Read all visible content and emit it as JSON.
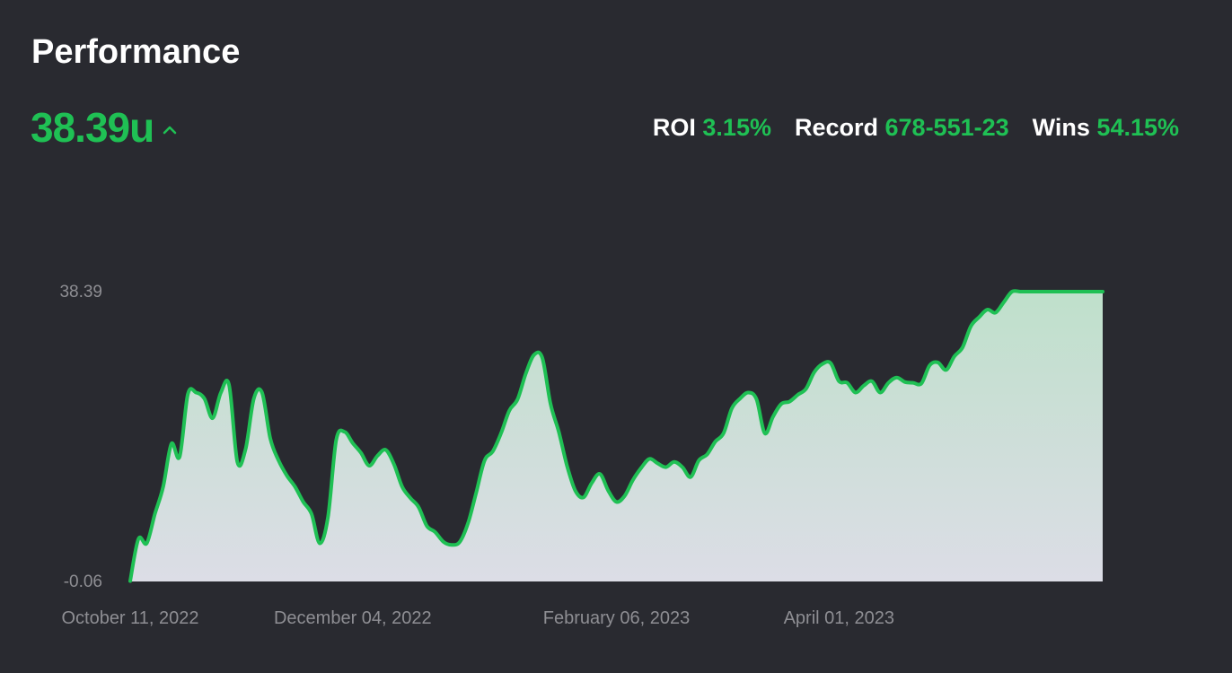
{
  "header": {
    "title": "Performance",
    "total_units": "38.39u",
    "trend_icon": "chevron-up-icon"
  },
  "stats": [
    {
      "label": "ROI",
      "value": "3.15%"
    },
    {
      "label": "Record",
      "value": "678-551-23"
    },
    {
      "label": "Wins",
      "value": "54.15%"
    }
  ],
  "colors": {
    "background": "#292a30",
    "accent_green": "#1fc054",
    "axis_text": "#8e8e93"
  },
  "chart_data": {
    "type": "area",
    "title": "",
    "xlabel": "",
    "ylabel": "",
    "ylim": [
      -0.06,
      38.39
    ],
    "y_tick_labels": [
      "38.39",
      "-0.06"
    ],
    "x_tick_labels": [
      "October 11, 2022",
      "December 04, 2022",
      "February 06, 2023",
      "April 01, 2023"
    ],
    "x_range": [
      "2022-10-11",
      "2023-06-04"
    ],
    "x_ticks": [
      "2022-10-11",
      "2022-12-04",
      "2023-02-06",
      "2023-04-01"
    ],
    "grid": false,
    "series": [
      {
        "x": [
          "2022-10-11",
          "2022-10-13",
          "2022-10-15",
          "2022-10-17",
          "2022-10-19",
          "2022-10-21",
          "2022-10-23",
          "2022-10-25",
          "2022-10-27",
          "2022-10-29",
          "2022-10-31",
          "2022-11-02",
          "2022-11-04",
          "2022-11-06",
          "2022-11-08",
          "2022-11-10",
          "2022-11-12",
          "2022-11-14",
          "2022-11-16",
          "2022-11-18",
          "2022-11-20",
          "2022-11-22",
          "2022-11-24",
          "2022-11-26",
          "2022-11-28",
          "2022-11-30",
          "2022-12-02",
          "2022-12-04",
          "2022-12-06",
          "2022-12-08",
          "2022-12-10",
          "2022-12-12",
          "2022-12-14",
          "2022-12-16",
          "2022-12-18",
          "2022-12-20",
          "2022-12-22",
          "2022-12-24",
          "2022-12-26",
          "2022-12-28",
          "2022-12-30",
          "2023-01-01",
          "2023-01-03",
          "2023-01-05",
          "2023-01-07",
          "2023-01-09",
          "2023-01-11",
          "2023-01-13",
          "2023-01-15",
          "2023-01-17",
          "2023-01-19",
          "2023-01-21",
          "2023-01-23",
          "2023-01-25",
          "2023-01-27",
          "2023-01-29",
          "2023-01-31",
          "2023-02-02",
          "2023-02-04",
          "2023-02-06",
          "2023-02-08",
          "2023-02-10",
          "2023-02-12",
          "2023-02-14",
          "2023-02-16",
          "2023-02-18",
          "2023-02-20",
          "2023-02-22",
          "2023-02-24",
          "2023-02-26",
          "2023-02-28",
          "2023-03-02",
          "2023-03-04",
          "2023-03-06",
          "2023-03-08",
          "2023-03-10",
          "2023-03-12",
          "2023-03-14",
          "2023-03-16",
          "2023-03-18",
          "2023-03-20",
          "2023-03-22",
          "2023-03-24",
          "2023-03-26",
          "2023-03-28",
          "2023-03-30",
          "2023-04-01",
          "2023-04-03",
          "2023-04-05",
          "2023-04-07",
          "2023-04-09",
          "2023-04-11",
          "2023-04-13",
          "2023-04-15",
          "2023-04-17",
          "2023-04-19",
          "2023-04-21",
          "2023-04-23",
          "2023-04-25",
          "2023-04-27",
          "2023-04-29",
          "2023-05-01",
          "2023-05-03",
          "2023-05-05",
          "2023-05-07",
          "2023-05-09",
          "2023-05-11",
          "2023-05-13",
          "2023-05-15",
          "2023-05-17",
          "2023-05-19",
          "2023-05-21",
          "2023-05-23",
          "2023-05-25",
          "2023-05-27",
          "2023-05-29",
          "2023-05-31",
          "2023-06-02",
          "2023-06-04"
        ],
        "values": [
          0.0,
          5.6,
          5.0,
          8.9,
          12.5,
          18.2,
          16.5,
          24.8,
          25.0,
          24.2,
          21.6,
          25.0,
          26.0,
          15.8,
          17.5,
          24.2,
          25.0,
          18.9,
          16.0,
          14.0,
          12.5,
          10.5,
          8.9,
          5.0,
          8.5,
          18.7,
          19.8,
          18.3,
          17.0,
          15.3,
          16.6,
          17.4,
          15.5,
          12.5,
          11.0,
          9.8,
          7.3,
          6.5,
          5.2,
          4.8,
          5.2,
          7.7,
          11.8,
          16.0,
          17.2,
          19.6,
          22.6,
          24.1,
          27.5,
          30.0,
          29.6,
          23.5,
          19.8,
          15.3,
          12.0,
          11.1,
          13.0,
          14.2,
          12.0,
          10.5,
          11.3,
          13.4,
          15.0,
          16.2,
          15.6,
          15.1,
          15.8,
          15.1,
          13.8,
          16.0,
          16.8,
          18.5,
          19.6,
          22.9,
          24.2,
          25.0,
          24.1,
          19.6,
          21.8,
          23.5,
          23.8,
          24.7,
          25.5,
          27.7,
          28.8,
          28.9,
          26.5,
          26.3,
          25.0,
          25.9,
          26.5,
          25.0,
          26.3,
          27.0,
          26.4,
          26.3,
          26.2,
          28.6,
          29.0,
          28.0,
          29.8,
          31.0,
          33.8,
          35.0,
          36.0,
          35.6,
          37.0,
          38.39,
          38.39,
          38.39,
          38.39,
          38.39,
          38.39,
          38.39,
          38.39,
          38.39,
          38.39,
          38.39,
          38.39
        ]
      }
    ]
  }
}
